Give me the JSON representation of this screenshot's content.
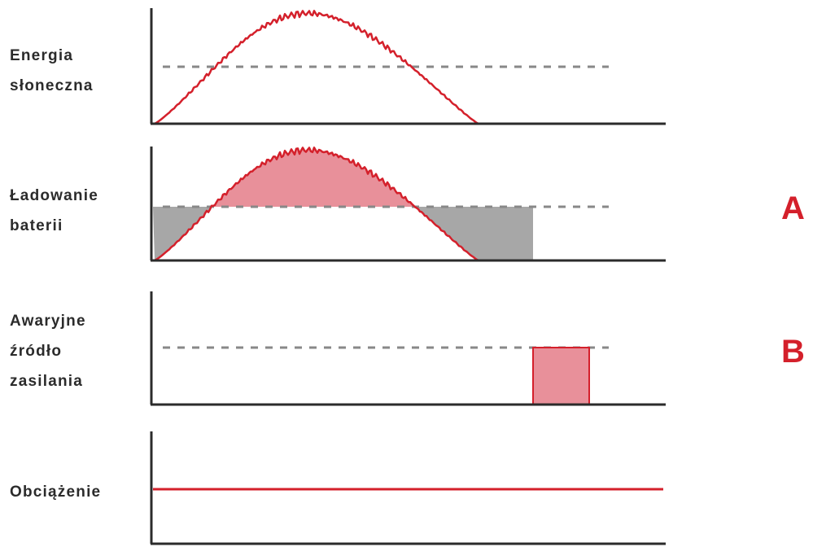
{
  "panels": [
    {
      "label": "Energia\nsłoneczna"
    },
    {
      "label": "Ładowanie\nbaterii"
    },
    {
      "label": "Awaryjne\nźródło\nzasilania"
    },
    {
      "label": "Obciążenie"
    }
  ],
  "markers": {
    "a": "A",
    "b": "B"
  },
  "colors": {
    "curve": "#d4202b",
    "fill_surplus": "#e8909a",
    "fill_deficit": "#a7a7a7",
    "axis": "#2b2b2b",
    "threshold": "#888888"
  }
}
